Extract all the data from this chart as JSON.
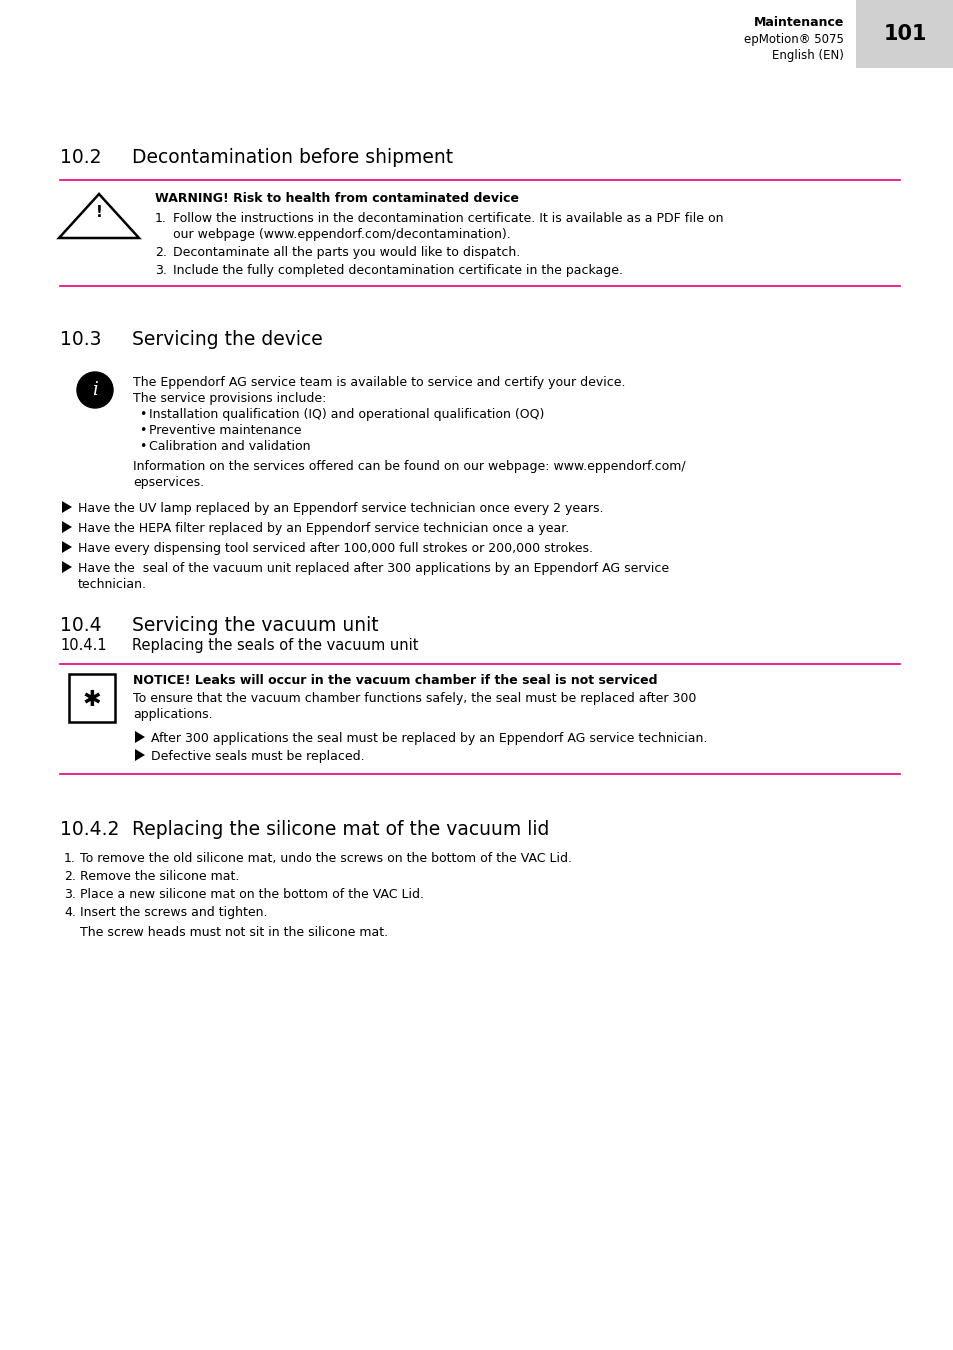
{
  "bg_color": "#ffffff",
  "pink_line_color": "#e6007e",
  "header": {
    "maintenance_label": "Maintenance",
    "device_label": "epMotion® 5075",
    "language_label": "English (EN)",
    "page_number": "101",
    "gray_bg": "#d0d0d0"
  },
  "sec_10_2": {
    "heading_num": "10.2",
    "heading_title": "Decontamination before shipment",
    "warn_title": "WARNING! Risk to health from contaminated device",
    "warn_items": [
      [
        "Follow the instructions in the decontamination certificate. It is available as a PDF file on",
        "our webpage (www.eppendorf.com/decontamination)."
      ],
      [
        "Decontaminate all the parts you would like to dispatch."
      ],
      [
        "Include the fully completed decontamination certificate in the package."
      ]
    ]
  },
  "sec_10_3": {
    "heading_num": "10.3",
    "heading_title": "Servicing the device",
    "info_line1": "The Eppendorf AG service team is available to service and certify your device.",
    "info_line2": "The service provisions include:",
    "info_bullets": [
      "Installation qualification (IQ) and operational qualification (OQ)",
      "Preventive maintenance",
      "Calibration and validation"
    ],
    "info_line3a": "Information on the services offered can be found on our webpage: www.eppendorf.com/",
    "info_line3b": "epservices.",
    "arrow_items": [
      [
        "Have the UV lamp replaced by an Eppendorf service technician once every 2 years."
      ],
      [
        "Have the HEPA filter replaced by an Eppendorf service technician once a year."
      ],
      [
        "Have every dispensing tool serviced after 100,000 full strokes or 200,000 strokes."
      ],
      [
        "Have the  seal of the vacuum unit replaced after 300 applications by an Eppendorf AG service",
        "technician."
      ]
    ]
  },
  "sec_10_4": {
    "heading_num": "10.4",
    "heading_title": "Servicing the vacuum unit",
    "sub_num": "10.4.1",
    "sub_title": "Replacing the seals of the vacuum unit",
    "notice_title": "NOTICE! Leaks will occur in the vacuum chamber if the seal is not serviced",
    "notice_body1": "To ensure that the vacuum chamber functions safely, the seal must be replaced after 300",
    "notice_body2": "applications.",
    "notice_arrows": [
      "After 300 applications the seal must be replaced by an Eppendorf AG service technician.",
      "Defective seals must be replaced."
    ]
  },
  "sec_10_4_2": {
    "sub_num": "10.4.2",
    "sub_title": "Replacing the silicone mat of the vacuum lid",
    "items": [
      "To remove the old silicone mat, undo the screws on the bottom of the VAC Lid.",
      "Remove the silicone mat.",
      "Place a new silicone mat on the bottom of the VAC Lid.",
      "Insert the screws and tighten."
    ],
    "note": "The screw heads must not sit in the silicone mat."
  }
}
